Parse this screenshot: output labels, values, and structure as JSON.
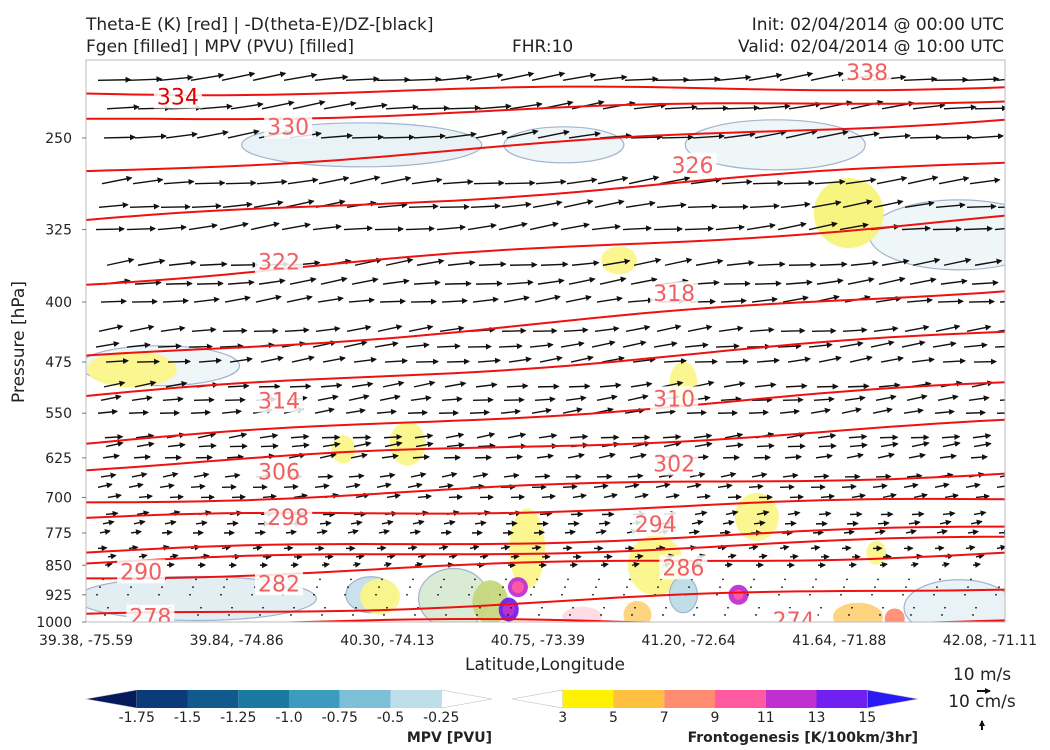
{
  "header": {
    "line1_left": "Theta-E (K) [red] | -D(theta-E)/DZ-[black]",
    "line2_left": "Fgen [filled] | MPV (PVU) [filled]",
    "fhr": "FHR:10",
    "init": "Init: 02/04/2014 @ 00:00 UTC",
    "valid": "Valid: 02/04/2014 @ 10:00 UTC"
  },
  "chart_data": {
    "type": "cross-section",
    "xlabel": "Latitude,Longitude",
    "ylabel": "Pressure [hPa]",
    "y_ticks": [
      250,
      325,
      400,
      475,
      550,
      625,
      700,
      775,
      850,
      925,
      1000
    ],
    "ylim": [
      1000,
      200
    ],
    "y_scale": "log-pressure",
    "x_ticks": [
      "39.38, -75.59",
      "39.84, -74.86",
      "40.30, -74.13",
      "40.75, -73.39",
      "41.20, -72.64",
      "41.64, -71.88",
      "42.08, -71.11"
    ],
    "theta_e_contours": [
      {
        "label": "334",
        "p": 220,
        "slope": 7
      },
      {
        "label": "330",
        "p": 238,
        "slope": 22
      },
      {
        "label": "326",
        "p": 276,
        "slope": 55
      },
      {
        "label": "322",
        "p": 318,
        "slope": 60
      },
      {
        "label": "318",
        "p": 378,
        "slope": 65
      },
      {
        "label": "314",
        "p": 470,
        "slope": 70
      },
      {
        "label": "310",
        "p": 525,
        "slope": 65
      },
      {
        "label": "306",
        "p": 600,
        "slope": 60
      },
      {
        "label": "302",
        "p": 643,
        "slope": 45
      },
      {
        "label": "298",
        "p": 710,
        "slope": 30
      },
      {
        "label": "294",
        "p": 745,
        "slope": 20
      },
      {
        "label": "290",
        "p": 820,
        "slope": 25
      },
      {
        "label": "286",
        "p": 845,
        "slope": 25
      },
      {
        "label": "282",
        "p": 880,
        "slope": 25
      },
      {
        "label": "278",
        "p": 985,
        "slope": 30
      },
      {
        "label": "274",
        "p": 1000,
        "slope": 0
      }
    ],
    "contour_label_positions": [
      {
        "label": "334",
        "x": 0.1,
        "p": 222,
        "color": "#e00000"
      },
      {
        "label": "330",
        "x": 0.22,
        "p": 242,
        "color": "#f06060"
      },
      {
        "label": "326",
        "x": 0.66,
        "p": 270,
        "color": "#f06060"
      },
      {
        "label": "322",
        "x": 0.21,
        "p": 356,
        "color": "#f06060"
      },
      {
        "label": "318",
        "x": 0.64,
        "p": 390,
        "color": "#f06060"
      },
      {
        "label": "314",
        "x": 0.21,
        "p": 530,
        "color": "#f06060"
      },
      {
        "label": "310",
        "x": 0.64,
        "p": 527,
        "color": "#f06060"
      },
      {
        "label": "306",
        "x": 0.21,
        "p": 650,
        "color": "#f06060"
      },
      {
        "label": "302",
        "x": 0.64,
        "p": 635,
        "color": "#f06060"
      },
      {
        "label": "298",
        "x": 0.22,
        "p": 740,
        "color": "#f06060"
      },
      {
        "label": "294",
        "x": 0.62,
        "p": 755,
        "color": "#f06060"
      },
      {
        "label": "290",
        "x": 0.06,
        "p": 865,
        "color": "#f06060"
      },
      {
        "label": "286",
        "x": 0.65,
        "p": 855,
        "color": "#f06060"
      },
      {
        "label": "282",
        "x": 0.21,
        "p": 895,
        "color": "#f06060"
      },
      {
        "label": "278",
        "x": 0.07,
        "p": 985,
        "color": "#f06060"
      },
      {
        "label": "274",
        "x": 0.77,
        "p": 995,
        "color": "#f06060"
      },
      {
        "label": "338",
        "x": 0.85,
        "p": 207,
        "color": "#f06060"
      }
    ],
    "contour_color": "#ee1111",
    "mpv_colorbar": {
      "label": "MPV [PVU]",
      "ticks": [
        "-1.75",
        "-1.5",
        "-1.25",
        "-1.0",
        "-0.75",
        "-0.5",
        "-0.25"
      ],
      "colors": [
        "#041a5c",
        "#0b3b78",
        "#135a8c",
        "#1b78a0",
        "#3b9cbf",
        "#7dbfd6",
        "#bedfe9",
        "#ffffff"
      ]
    },
    "fgen_colorbar": {
      "label": "Frontogenesis [K/100km/3hr]",
      "ticks": [
        "3",
        "5",
        "7",
        "9",
        "11",
        "13",
        "15"
      ],
      "colors": [
        "#ffffff",
        "#fff200",
        "#ffc040",
        "#ff8c70",
        "#ff5aa0",
        "#c030d0",
        "#7020f0",
        "#2a1af5"
      ]
    },
    "wind_key": {
      "label1": "10 m/s",
      "label2": "10 cm/s"
    }
  }
}
